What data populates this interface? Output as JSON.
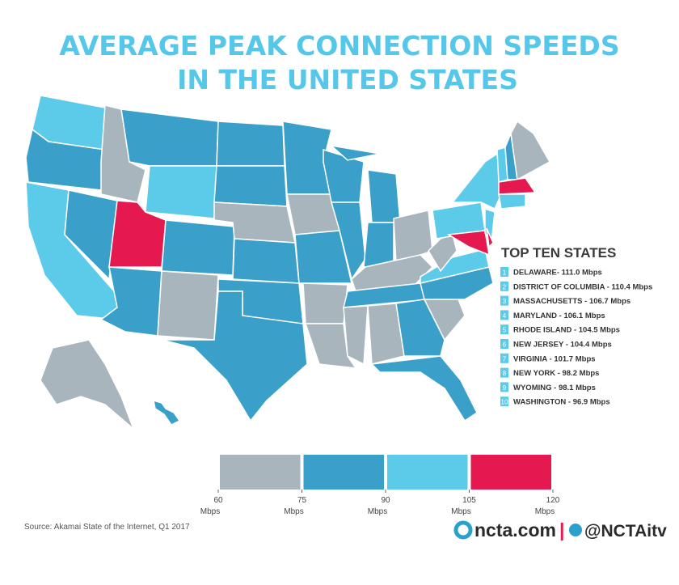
{
  "header": {
    "title": [
      "AVERAGE PEAK CONNECTION SPEEDS",
      "IN THE UNITED STATES"
    ]
  },
  "top_ten": {
    "heading": "TOP TEN STATES",
    "items": [
      {
        "rank": "1",
        "text": "DELAWARE- 111.0 Mbps"
      },
      {
        "rank": "2",
        "text": "DISTRICT OF COLUMBIA - 110.4 Mbps"
      },
      {
        "rank": "3",
        "text": "MASSACHUSETTS - 106.7 Mbps"
      },
      {
        "rank": "4",
        "text": "MARYLAND - 106.1 Mbps"
      },
      {
        "rank": "5",
        "text": "RHODE ISLAND - 104.5 Mbps"
      },
      {
        "rank": "6",
        "text": "NEW JERSEY - 104.4 Mbps"
      },
      {
        "rank": "7",
        "text": "VIRGINIA - 101.7 Mbps"
      },
      {
        "rank": "8",
        "text": "NEW YORK - 98.2 Mbps"
      },
      {
        "rank": "9",
        "text": "WYOMING - 98.1 Mbps"
      },
      {
        "rank": "10",
        "text": "WASHINGTON - 96.9 Mbps"
      }
    ]
  },
  "legend": {
    "ticks": [
      60,
      75,
      90,
      105,
      120
    ],
    "unit": "Mbps",
    "colors": [
      "#a8b5bd",
      "#3aa0c9",
      "#5ccbea",
      "#e5194f"
    ]
  },
  "source": "Source: Akamai State of the Internet, Q1 2017",
  "branding": {
    "site": "ncta.com",
    "separator": "|",
    "handle": "@NCTAitv"
  }
}
